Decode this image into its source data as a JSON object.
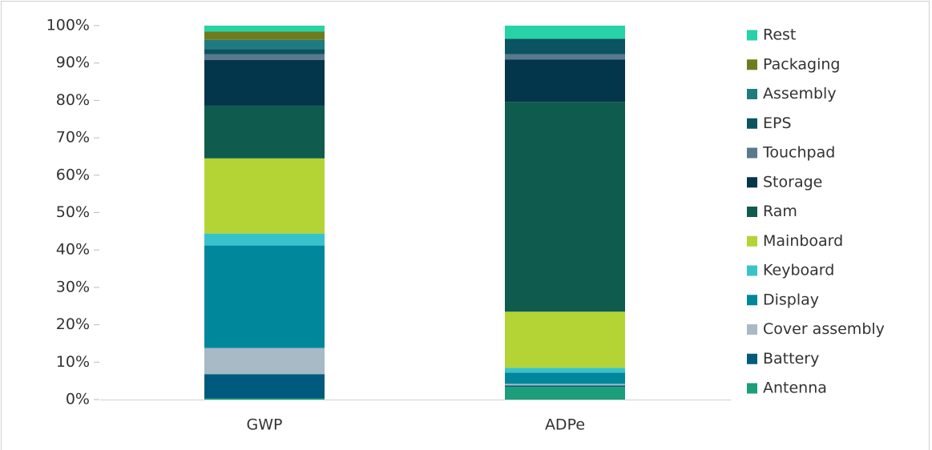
{
  "chart_data": {
    "type": "stacked_bar",
    "categories": [
      "GWP",
      "ADPe"
    ],
    "series": [
      {
        "name": "Antenna",
        "color": "#1c9e7b",
        "values": [
          0.3,
          3.4
        ]
      },
      {
        "name": "Battery",
        "color": "#005a7e",
        "values": [
          6.5,
          0.4
        ]
      },
      {
        "name": "Cover assembly",
        "color": "#a7bac5",
        "values": [
          7,
          0.4
        ]
      },
      {
        "name": "Display",
        "color": "#00879b",
        "values": [
          27.4,
          3.0
        ]
      },
      {
        "name": "Keyboard",
        "color": "#38c3cc",
        "values": [
          3.2,
          1.3
        ]
      },
      {
        "name": "Mainboard",
        "color": "#b4d335",
        "values": [
          20.1,
          15.0
        ]
      },
      {
        "name": "Ram",
        "color": "#0f5c4e",
        "values": [
          14.1,
          56.1
        ]
      },
      {
        "name": "Storage",
        "color": "#03354b",
        "values": [
          12.2,
          11.3
        ]
      },
      {
        "name": "Touchpad",
        "color": "#59798d",
        "values": [
          1.6,
          1.5
        ]
      },
      {
        "name": "EPS",
        "color": "#0a5361",
        "values": [
          1.3,
          4.1
        ]
      },
      {
        "name": "Assembly",
        "color": "#1f7b80",
        "values": [
          2.5,
          0
        ]
      },
      {
        "name": "Packaging",
        "color": "#6f7c1d",
        "values": [
          2.2,
          0
        ]
      },
      {
        "name": "Rest",
        "color": "#27d2a6",
        "values": [
          1.6,
          3.5
        ]
      }
    ],
    "ylim": [
      0,
      100
    ],
    "yticks": [
      {
        "value": 0,
        "label": "0%"
      },
      {
        "value": 10,
        "label": "10%"
      },
      {
        "value": 20,
        "label": "20%"
      },
      {
        "value": 30,
        "label": "30%"
      },
      {
        "value": 40,
        "label": "40%"
      },
      {
        "value": 50,
        "label": "50%"
      },
      {
        "value": 60,
        "label": "60%"
      },
      {
        "value": 70,
        "label": "70%"
      },
      {
        "value": 80,
        "label": "80%"
      },
      {
        "value": 90,
        "label": "90%"
      },
      {
        "value": 100,
        "label": "100%"
      }
    ],
    "legend": "right"
  }
}
